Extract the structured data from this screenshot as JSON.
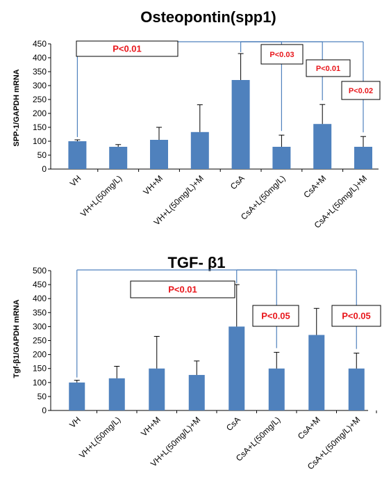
{
  "chart_data": [
    {
      "type": "bar",
      "title": "Osteopontin(spp1)",
      "ylabel": "SPP-1/GAPDH mRNA",
      "ylim": [
        0,
        450
      ],
      "yticks": [
        0,
        50,
        100,
        150,
        200,
        250,
        300,
        350,
        400,
        450
      ],
      "grid": false,
      "categories": [
        "VH",
        "VH+L(50mg/L)",
        "VH+M",
        "VH+L(50mg/L)+M",
        "CsA",
        "CsA+L(50mg/L)",
        "CsA+M",
        "CsA+L(50mg/L)+M"
      ],
      "values": [
        100,
        80,
        105,
        133,
        320,
        80,
        162,
        80
      ],
      "errors": [
        5,
        8,
        45,
        98,
        95,
        42,
        70,
        37
      ],
      "color": "#4f81bd",
      "annotations": [
        {
          "text": "P<0.01",
          "from": 0,
          "to": 4
        },
        {
          "text": "P<0.03",
          "from": 4,
          "to": 5
        },
        {
          "text": "P<0.01",
          "from": 4,
          "to": 6
        },
        {
          "text": "P<0.02",
          "from": 4,
          "to": 7
        }
      ]
    },
    {
      "type": "bar",
      "title": "TGF- β1",
      "ylabel": "Tgf-β1/GAPDH mRNA",
      "ylim": [
        0,
        500
      ],
      "yticks": [
        0,
        50,
        100,
        150,
        200,
        250,
        300,
        350,
        400,
        450,
        500
      ],
      "grid": false,
      "categories": [
        "VH",
        "VH+L(50mg/L)",
        "VH+M",
        "VH+L(50mg/L)+M",
        "CsA",
        "CsA+L(50mg/L)",
        "CsA+M",
        "CsA+L(50mg/L)+M"
      ],
      "values": [
        100,
        115,
        150,
        127,
        300,
        150,
        270,
        150
      ],
      "errors": [
        8,
        43,
        115,
        50,
        150,
        58,
        95,
        55
      ],
      "color": "#4f81bd",
      "annotations": [
        {
          "text": "P<0.01",
          "from": 0,
          "to": 4
        },
        {
          "text": "P<0.05",
          "from": 4,
          "to": 5
        },
        {
          "text": "P<0.05",
          "from": 4,
          "to": 7
        }
      ]
    }
  ]
}
